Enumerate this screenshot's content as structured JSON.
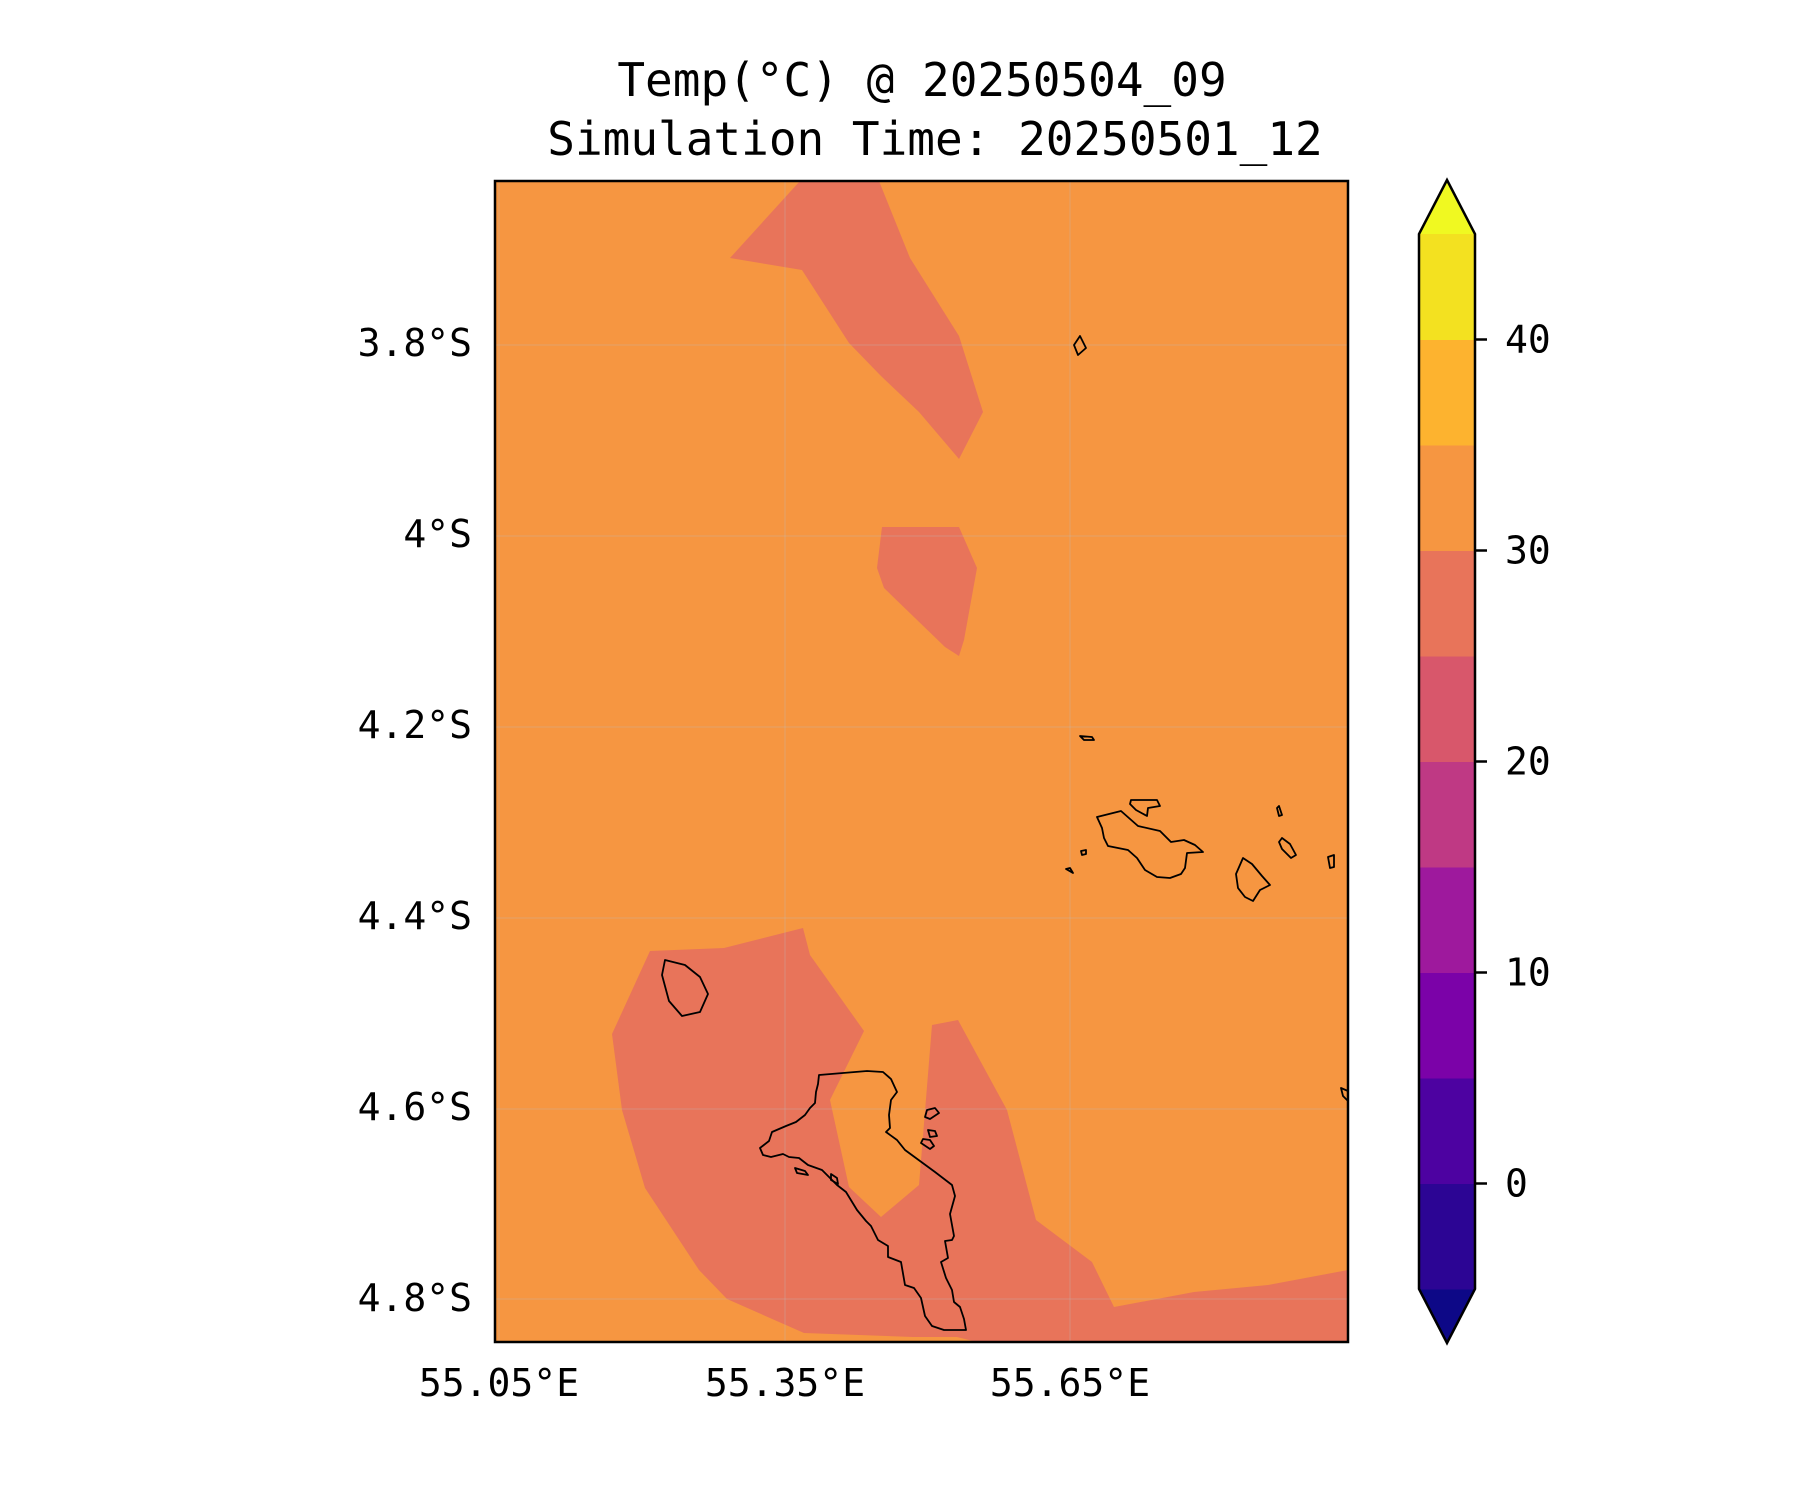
{
  "title": {
    "line1": "Temp(°C) @ 20250504_09",
    "line2": "Simulation Time: 20250501_12"
  },
  "map": {
    "lon_range": [
      55.05,
      55.95
    ],
    "lat_range": [
      -3.67,
      -4.89
    ],
    "x_ticks": [
      {
        "value": 55.05,
        "label": "55.05°E"
      },
      {
        "value": 55.35,
        "label": "55.35°E"
      },
      {
        "value": 55.65,
        "label": "55.65°E"
      }
    ],
    "y_ticks": [
      {
        "value": -3.8,
        "label": "3.8°S"
      },
      {
        "value": -4.0,
        "label": "4°S"
      },
      {
        "value": -4.2,
        "label": "4.2°S"
      },
      {
        "value": -4.4,
        "label": "4.4°S"
      },
      {
        "value": -4.6,
        "label": "4.6°S"
      },
      {
        "value": -4.8,
        "label": "4.8°S"
      }
    ],
    "background_band_color": "#f69641",
    "cooler_band_color": "#e8745a",
    "grid": true
  },
  "colorbar": {
    "range": [
      -5,
      45
    ],
    "extend": "both",
    "ticks": [
      {
        "value": 0,
        "label": "0"
      },
      {
        "value": 10,
        "label": "10"
      },
      {
        "value": 20,
        "label": "20"
      },
      {
        "value": 30,
        "label": "30"
      },
      {
        "value": 40,
        "label": "40"
      }
    ],
    "bands": [
      {
        "from": -5,
        "to": 0,
        "color": "#2c0594"
      },
      {
        "from": 0,
        "to": 5,
        "color": "#4d02a1"
      },
      {
        "from": 5,
        "to": 10,
        "color": "#7b02a8"
      },
      {
        "from": 10,
        "to": 15,
        "color": "#9e199d"
      },
      {
        "from": 15,
        "to": 20,
        "color": "#bf3984"
      },
      {
        "from": 20,
        "to": 25,
        "color": "#d8576b"
      },
      {
        "from": 25,
        "to": 30,
        "color": "#e8745a"
      },
      {
        "from": 30,
        "to": 35,
        "color": "#f69641"
      },
      {
        "from": 35,
        "to": 40,
        "color": "#fdb32f"
      },
      {
        "from": 40,
        "to": 45,
        "color": "#f3e120"
      }
    ],
    "under_color": "#0d0887",
    "over_color": "#f0f921"
  }
}
